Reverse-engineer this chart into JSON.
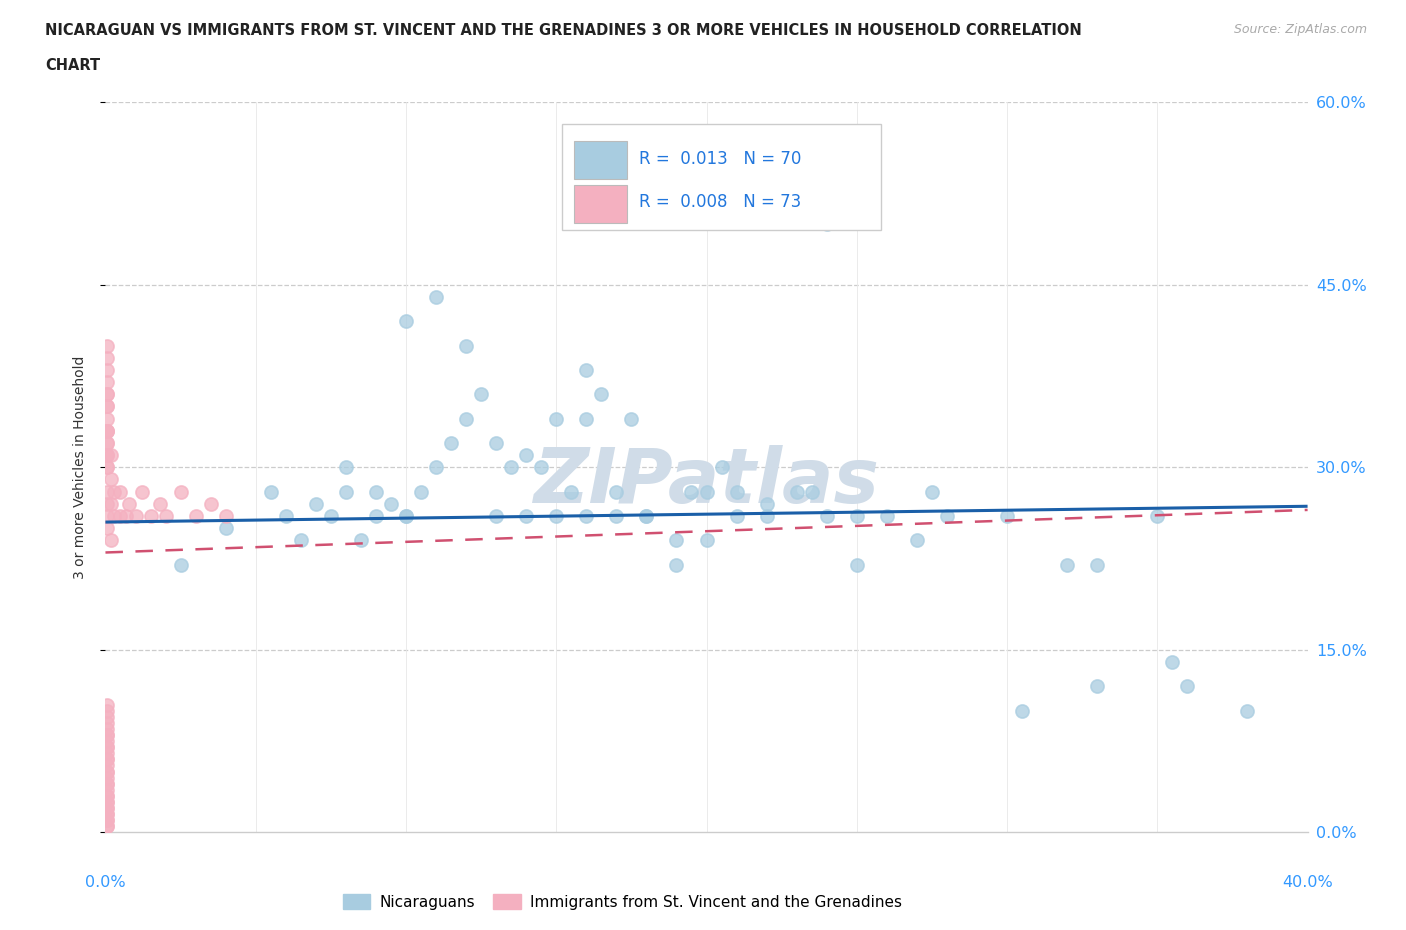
{
  "title_line1": "NICARAGUAN VS IMMIGRANTS FROM ST. VINCENT AND THE GRENADINES 3 OR MORE VEHICLES IN HOUSEHOLD CORRELATION",
  "title_line2": "CHART",
  "source": "Source: ZipAtlas.com",
  "ylabel": "3 or more Vehicles in Household",
  "xlim": [
    0.0,
    40.0
  ],
  "ylim": [
    0.0,
    60.0
  ],
  "ytick_vals": [
    0,
    15,
    30,
    45,
    60
  ],
  "ytick_labels": [
    "0.0%",
    "15.0%",
    "30.0%",
    "45.0%",
    "60.0%"
  ],
  "color_blue_scatter": "#a8cce0",
  "color_blue_line": "#1a5fa8",
  "color_pink_scatter": "#f4b0c0",
  "color_pink_line": "#d05070",
  "color_text_blue": "#3399ff",
  "legend_label_1": "Nicaraguans",
  "legend_label_2": "Immigrants from St. Vincent and the Grenadines",
  "blue_x": [
    2.5,
    4.0,
    5.5,
    6.0,
    6.5,
    7.0,
    7.5,
    8.0,
    8.5,
    9.0,
    9.5,
    10.0,
    10.5,
    11.0,
    11.5,
    12.0,
    12.5,
    13.0,
    13.5,
    14.0,
    14.5,
    15.0,
    15.5,
    16.0,
    16.5,
    17.0,
    17.5,
    18.0,
    19.0,
    19.5,
    20.0,
    20.5,
    21.0,
    22.0,
    23.0,
    24.0,
    25.0,
    26.0,
    27.0,
    28.0,
    30.0,
    32.0,
    33.0,
    35.0,
    8.0,
    9.0,
    10.0,
    11.0,
    12.0,
    13.0,
    14.0,
    15.0,
    16.0,
    17.0,
    18.0,
    19.0,
    20.0,
    21.0,
    22.0,
    23.5,
    25.0,
    27.5,
    30.5,
    33.0,
    35.5,
    36.0,
    38.0,
    24.0,
    16.0,
    10.0
  ],
  "blue_y": [
    22.0,
    25.0,
    28.0,
    26.0,
    24.0,
    27.0,
    26.0,
    28.0,
    24.0,
    26.0,
    27.0,
    26.0,
    28.0,
    30.0,
    32.0,
    34.0,
    36.0,
    32.0,
    30.0,
    31.0,
    30.0,
    34.0,
    28.0,
    34.0,
    36.0,
    28.0,
    34.0,
    26.0,
    24.0,
    28.0,
    28.0,
    30.0,
    28.0,
    27.0,
    28.0,
    26.0,
    22.0,
    26.0,
    24.0,
    26.0,
    26.0,
    22.0,
    22.0,
    26.0,
    30.0,
    28.0,
    42.0,
    44.0,
    40.0,
    26.0,
    26.0,
    26.0,
    26.0,
    26.0,
    26.0,
    22.0,
    24.0,
    26.0,
    26.0,
    28.0,
    26.0,
    28.0,
    10.0,
    12.0,
    14.0,
    12.0,
    10.0,
    50.0,
    38.0,
    26.0
  ],
  "pink_x": [
    0.05,
    0.05,
    0.05,
    0.05,
    0.05,
    0.05,
    0.05,
    0.05,
    0.05,
    0.05,
    0.05,
    0.05,
    0.05,
    0.05,
    0.05,
    0.05,
    0.05,
    0.05,
    0.05,
    0.05,
    0.05,
    0.05,
    0.05,
    0.05,
    0.05,
    0.05,
    0.05,
    0.05,
    0.05,
    0.05,
    0.2,
    0.2,
    0.2,
    0.2,
    0.3,
    0.3,
    0.5,
    0.5,
    0.7,
    0.8,
    1.0,
    1.2,
    1.5,
    1.8,
    2.0,
    2.5,
    3.0,
    3.5,
    4.0,
    0.05,
    0.05,
    0.05,
    0.05,
    0.05,
    0.05,
    0.05,
    0.05,
    0.05,
    0.05,
    0.05,
    0.05,
    0.05,
    0.05,
    0.05,
    0.05,
    0.05,
    0.05,
    0.05,
    0.05,
    0.05,
    0.05,
    0.05,
    0.05
  ],
  "pink_y": [
    0.5,
    1.0,
    1.5,
    2.0,
    2.5,
    3.0,
    3.5,
    4.0,
    4.5,
    5.0,
    5.5,
    6.0,
    6.5,
    7.0,
    7.5,
    8.0,
    8.5,
    9.0,
    9.5,
    10.0,
    10.5,
    25.0,
    27.0,
    28.0,
    30.0,
    31.0,
    33.0,
    35.0,
    36.0,
    38.0,
    24.0,
    27.0,
    29.0,
    31.0,
    26.0,
    28.0,
    26.0,
    28.0,
    26.0,
    27.0,
    26.0,
    28.0,
    26.0,
    27.0,
    26.0,
    28.0,
    26.0,
    27.0,
    26.0,
    0.5,
    1.0,
    1.5,
    2.0,
    2.5,
    3.0,
    4.0,
    5.0,
    6.0,
    7.0,
    8.0,
    35.0,
    37.0,
    39.0,
    40.0,
    32.0,
    33.0,
    34.0,
    36.0,
    30.0,
    31.0,
    32.0,
    33.0,
    26.0
  ],
  "trend_blue_x0": 0.0,
  "trend_blue_y0": 25.5,
  "trend_blue_x1": 40.0,
  "trend_blue_y1": 26.8,
  "trend_pink_x0": 0.0,
  "trend_pink_y0": 23.0,
  "trend_pink_x1": 40.0,
  "trend_pink_y1": 26.5
}
